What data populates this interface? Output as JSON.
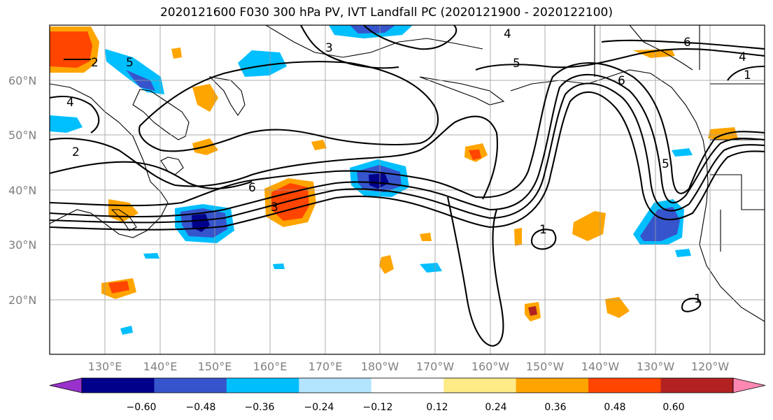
{
  "title": "2020121600 F030 300 hPa PV, IVT Landfall PC (2020121900 - 2020122100)",
  "map": {
    "lat_labels": [
      "60°N",
      "50°N",
      "40°N",
      "30°N",
      "20°N"
    ],
    "lon_labels": [
      "130°E",
      "140°E",
      "150°E",
      "160°E",
      "170°E",
      "180°W",
      "170°W",
      "160°W",
      "150°W",
      "140°W",
      "130°W",
      "120°W"
    ],
    "contour_labels": [
      "2",
      "3",
      "4",
      "5",
      "6",
      "6",
      "5",
      "4",
      "1",
      "2",
      "3",
      "4",
      "5",
      "6",
      "1",
      "1"
    ],
    "grid": true
  },
  "colorbar": {
    "tick_labels": [
      "−0.60",
      "−0.48",
      "−0.36",
      "−0.24",
      "−0.12",
      "0.12",
      "0.24",
      "0.36",
      "0.48",
      "0.60"
    ],
    "colors": [
      "#9932cc",
      "#00008b",
      "#3655cc",
      "#00bfff",
      "#b3e5ff",
      "#ffffff",
      "#ffeb87",
      "#ffa500",
      "#ff4500",
      "#b22222",
      "#ff88b3"
    ]
  }
}
